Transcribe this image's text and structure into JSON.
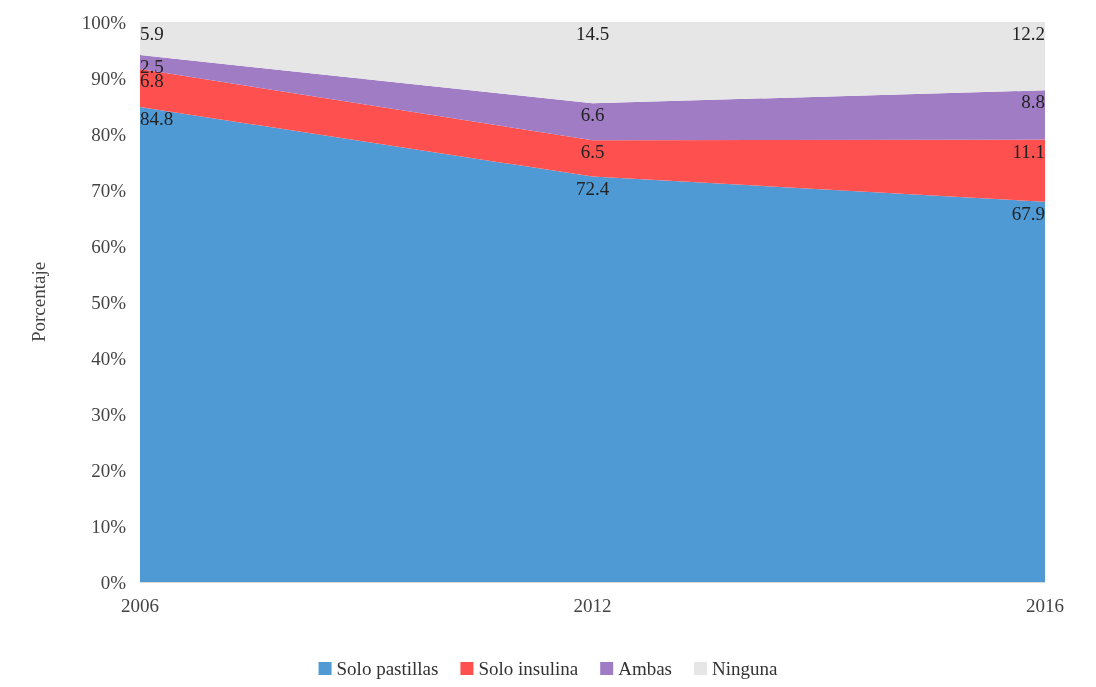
{
  "chart_data": {
    "type": "area",
    "stacked": true,
    "ylabel": "Porcentaje",
    "categories": [
      "2006",
      "2012",
      "2016"
    ],
    "series": [
      {
        "name": "Solo pastillas",
        "color": "#4f9ad4",
        "values": [
          84.8,
          72.4,
          67.9
        ]
      },
      {
        "name": "Solo insulina",
        "color": "#ff5050",
        "values": [
          6.8,
          6.5,
          11.1
        ]
      },
      {
        "name": "Ambas",
        "color": "#a07cc5",
        "values": [
          2.5,
          6.6,
          8.8
        ]
      },
      {
        "name": "Ninguna",
        "color": "#e6e6e6",
        "values": [
          5.9,
          14.5,
          12.2
        ]
      }
    ],
    "ylim": [
      0,
      100
    ],
    "yticks": [
      {
        "value": 0,
        "label": "0%"
      },
      {
        "value": 10,
        "label": "10%"
      },
      {
        "value": 20,
        "label": "20%"
      },
      {
        "value": 30,
        "label": "30%"
      },
      {
        "value": 40,
        "label": "40%"
      },
      {
        "value": 50,
        "label": "50%"
      },
      {
        "value": 60,
        "label": "60%"
      },
      {
        "value": 70,
        "label": "70%"
      },
      {
        "value": 80,
        "label": "80%"
      },
      {
        "value": 90,
        "label": "90%"
      },
      {
        "value": 100,
        "label": "100%"
      }
    ],
    "grid": "y",
    "legend": "bottom",
    "data_labels": true
  }
}
